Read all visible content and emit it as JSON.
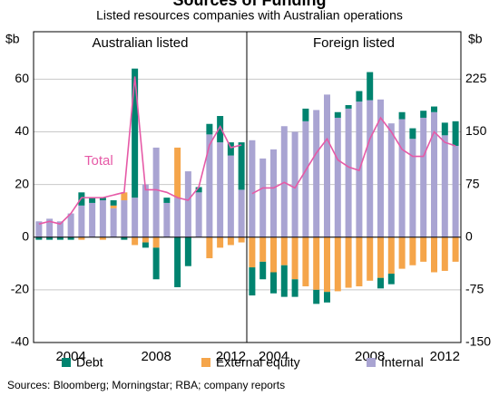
{
  "title": "Sources of Funding",
  "subtitle": "Listed resources companies with Australian operations",
  "source": "Sources: Bloomberg; Morningstar; RBA; company reports",
  "chart_data": [
    {
      "type": "bar",
      "stacked": true,
      "title": "Australian listed",
      "ylabel": "$b",
      "axis_side": "left",
      "categories": [
        null,
        null,
        null,
        "2004",
        null,
        null,
        null,
        null,
        null,
        null,
        null,
        "2008",
        null,
        null,
        null,
        null,
        null,
        null,
        "2012",
        null
      ],
      "ylim": [
        -40,
        78
      ],
      "yticks": [
        -40,
        -20,
        0,
        20,
        40,
        60
      ],
      "grid": true,
      "series": [
        {
          "name": "Debt",
          "color": "#00836f",
          "values": [
            -1,
            -1,
            -1,
            -1,
            5,
            2,
            1,
            2,
            -1,
            49,
            -2,
            -12,
            2,
            -19,
            -11,
            2,
            4,
            10,
            5,
            18
          ]
        },
        {
          "name": "External equity",
          "color": "#f5a54a",
          "values": [
            0,
            0,
            0,
            0,
            -1,
            0,
            -1,
            1,
            3,
            -3,
            -2,
            -4,
            0,
            19,
            0,
            0,
            -8,
            -4,
            -3,
            -2
          ]
        },
        {
          "name": "Internal",
          "color": "#a9a4d2",
          "values": [
            6,
            7,
            6,
            9,
            12,
            13,
            14,
            11,
            14,
            15,
            20,
            34,
            13,
            15,
            25,
            17,
            39,
            36,
            31,
            18
          ]
        },
        {
          "type": "line",
          "name": "Total",
          "color": "#e65aa7",
          "values": [
            5,
            6,
            5,
            9,
            15,
            15,
            15,
            16,
            17,
            61,
            18,
            18,
            17,
            15,
            14,
            19,
            35,
            42,
            34,
            35
          ]
        }
      ]
    },
    {
      "type": "bar",
      "stacked": true,
      "title": "Foreign listed",
      "ylabel": "$b",
      "axis_side": "right",
      "categories": [
        null,
        null,
        "2004",
        null,
        null,
        null,
        null,
        null,
        null,
        null,
        null,
        "2008",
        null,
        null,
        null,
        null,
        null,
        null,
        "2012",
        null
      ],
      "ylim": [
        -150,
        292.5
      ],
      "yticks": [
        -150,
        -75,
        0,
        75,
        150,
        225
      ],
      "grid": true,
      "series": [
        {
          "color": "#00836f",
          "values": [
            -40,
            -25,
            -30,
            -45,
            -25,
            18,
            -20,
            -15,
            8,
            5,
            15,
            40,
            -15,
            -15,
            10,
            15,
            10,
            8,
            18,
            35
          ]
        },
        {
          "color": "#f5a54a",
          "values": [
            -43,
            -35,
            -50,
            -40,
            -60,
            -70,
            -75,
            -78,
            -77,
            -72,
            -70,
            -62,
            -58,
            -52,
            -45,
            -40,
            -35,
            -50,
            -48,
            -35
          ]
        },
        {
          "color": "#a9a4d2",
          "values": [
            138,
            112,
            125,
            158,
            150,
            165,
            181,
            203,
            170,
            183,
            193,
            195,
            196,
            162,
            168,
            140,
            170,
            178,
            145,
            130
          ]
        },
        {
          "type": "line",
          "color": "#e65aa7",
          "values": [
            62,
            70,
            70,
            78,
            70,
            95,
            120,
            140,
            110,
            100,
            95,
            140,
            170,
            150,
            125,
            115,
            115,
            150,
            135,
            130
          ]
        }
      ]
    }
  ]
}
